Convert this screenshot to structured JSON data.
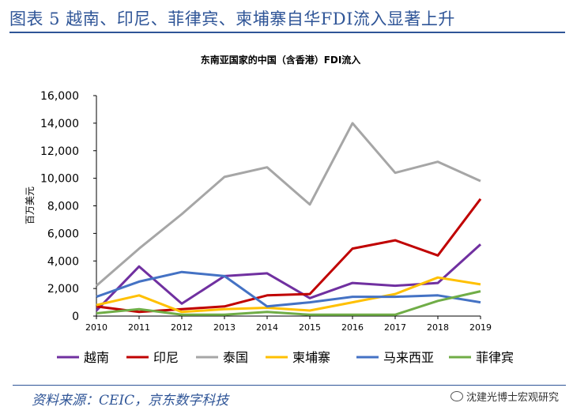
{
  "figure_title": "图表 5 越南、印尼、菲律宾、柬埔寨自华FDI流入显著上升",
  "source": "资料来源：CEIC，京东数字科技",
  "watermark": "沈建光博士宏观研究",
  "chart_data": {
    "type": "line",
    "title": "东南亚国家的中国（含香港）FDI流入",
    "ylabel": "百万美元",
    "xlabel": "",
    "ylim": [
      0,
      16000
    ],
    "yticks": [
      0,
      2000,
      4000,
      6000,
      8000,
      10000,
      12000,
      14000,
      16000
    ],
    "ytick_labels": [
      "0",
      "2,000",
      "4,000",
      "6,000",
      "8,000",
      "10,000",
      "12,000",
      "14,000",
      "16,000"
    ],
    "categories": [
      "2010",
      "2011",
      "2012",
      "2013",
      "2014",
      "2015",
      "2016",
      "2017",
      "2018",
      "2019"
    ],
    "grid": false,
    "legend_position": "bottom",
    "series": [
      {
        "name": "越南",
        "color": "#7030a0",
        "values": [
          400,
          3600,
          900,
          2900,
          3100,
          1300,
          2400,
          2200,
          2400,
          5200
        ]
      },
      {
        "name": "印尼",
        "color": "#c00000",
        "values": [
          700,
          300,
          500,
          700,
          1500,
          1600,
          4900,
          5500,
          4400,
          8500
        ]
      },
      {
        "name": "泰国",
        "color": "#a6a6a6",
        "values": [
          2200,
          4900,
          7400,
          10100,
          10800,
          8100,
          14000,
          10400,
          11200,
          9800
        ]
      },
      {
        "name": "柬埔寨",
        "color": "#ffc000",
        "values": [
          800,
          1500,
          300,
          500,
          600,
          400,
          1000,
          1600,
          2800,
          2300
        ]
      },
      {
        "name": "马来西亚",
        "color": "#4472c4",
        "values": [
          1400,
          2500,
          3200,
          2900,
          700,
          1000,
          1400,
          1400,
          1500,
          1000
        ]
      },
      {
        "name": "菲律宾",
        "color": "#70ad47",
        "values": [
          200,
          500,
          100,
          100,
          300,
          100,
          100,
          100,
          1100,
          1800
        ]
      }
    ]
  }
}
